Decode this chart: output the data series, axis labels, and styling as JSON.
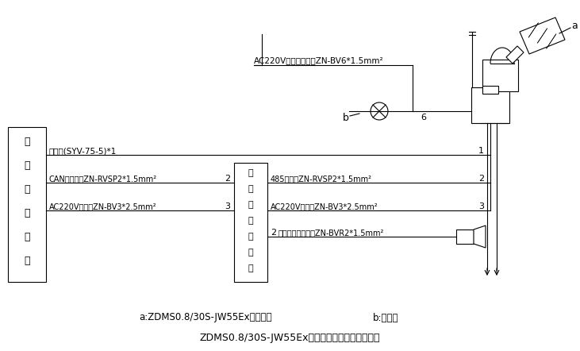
{
  "title": "ZDMS0.8/30S-JW55Ex灭火装置电气组成及示意图",
  "legend_a": "a:ZDMS0.8/30S-JW55Ex灭火装置",
  "legend_b": "b:电动阀",
  "bg_color": "#ffffff",
  "line_color": "#000000",
  "left_box_label": [
    "集",
    "中",
    "控",
    "制",
    "装",
    "置"
  ],
  "mid_box_label": [
    "现",
    "场",
    "手",
    "动",
    "控",
    "制",
    "盘"
  ],
  "line1_label": "视频线(SYV-75-5)*1",
  "line1_num": "1",
  "line2_label": "CAN通讯总线ZN-RVSP2*1.5mm²",
  "line2_num": "2",
  "line3_label": "AC220V电源线ZN-BV3*2.5mm²",
  "line3_num": "3",
  "rline1_label": "485通讯线ZN-RVSP2*1.5mm²",
  "rline1_num": "2",
  "rline2_label": "AC220V电源线ZN-BV3*2.5mm²",
  "rline2_num": "3",
  "rline3_label": "声光报警器电源线ZN-BVR2*1.5mm²",
  "rline3_num": "2",
  "top_cable_label": "AC220V电动阀电源线ZN-BV6*1.5mm²",
  "label_a": "a",
  "label_b": "b",
  "label_6": "6"
}
